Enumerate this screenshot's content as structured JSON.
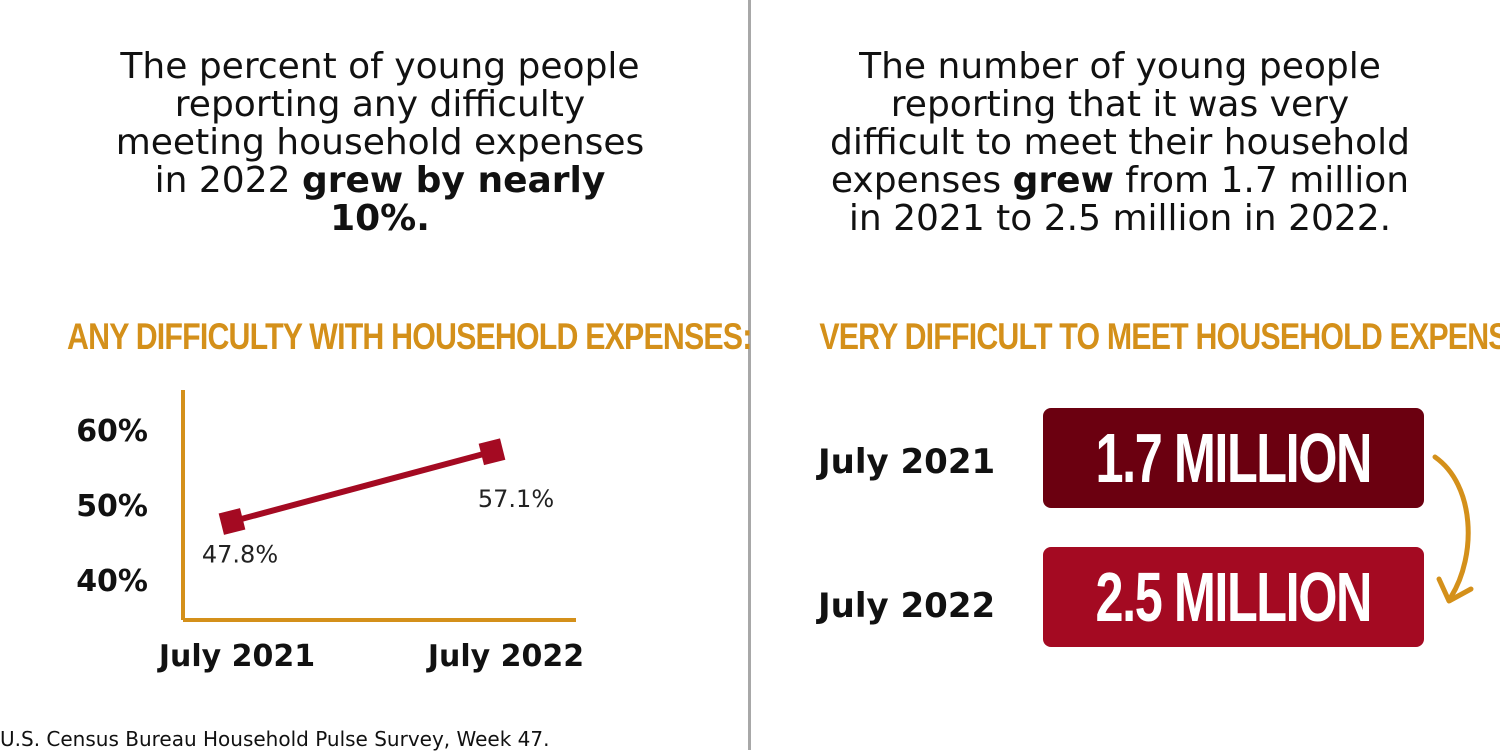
{
  "left": {
    "intro_plain": "The percent of young people reporting any difficulty meeting household expenses in 2022 ",
    "intro_bold": "grew by nearly 10%.",
    "heading": "ANY DIFFICULTY WITH HOUSEHOLD EXPENSES:"
  },
  "right": {
    "intro_plain_1": "The number of young people reporting that it was very difficult to meet their household expenses ",
    "intro_bold": "grew",
    "intro_plain_2": " from 1.7 million in 2021 to 2.5 million in 2022.",
    "heading": "VERY DIFFICULT TO MEET HOUSEHOLD EXPENSES:",
    "rows": [
      {
        "label": "July 2021",
        "value": "1.7 MILLION"
      },
      {
        "label": "July 2022",
        "value": "2.5 MILLION"
      }
    ]
  },
  "footnote": "U.S. Census Bureau Household Pulse Survey, Week 47.",
  "colors": {
    "accent_gold": "#d4901a",
    "line_red": "#a40a22",
    "box_dark": "#6b0010",
    "box_red": "#a40a22"
  },
  "chart_data": [
    {
      "type": "line",
      "title": "ANY DIFFICULTY WITH HOUSEHOLD EXPENSES:",
      "categories": [
        "July 2021",
        "July 2022"
      ],
      "series": [
        {
          "values": [
            47.8,
            57.1
          ]
        }
      ],
      "data_labels": [
        "47.8%",
        "57.1%"
      ],
      "yticks": [
        "60%",
        "50%",
        "40%"
      ],
      "ytick_values": [
        60,
        50,
        40
      ],
      "ylim": [
        40,
        60
      ],
      "grid": false
    },
    {
      "type": "table",
      "title": "VERY DIFFICULT TO MEET HOUSEHOLD EXPENSES:",
      "categories": [
        "July 2021",
        "July 2022"
      ],
      "values": [
        1.7,
        2.5
      ],
      "unit": "million"
    }
  ]
}
